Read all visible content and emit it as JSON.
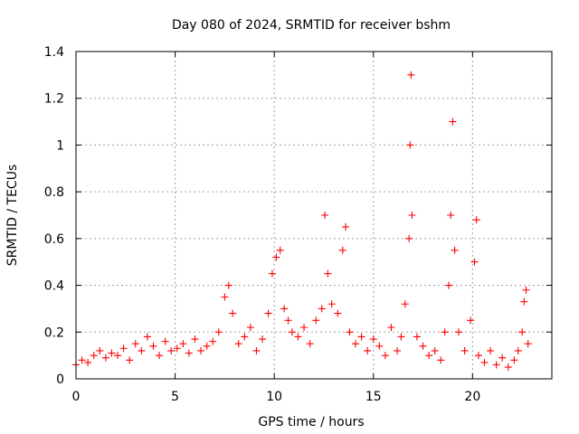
{
  "chart_data": {
    "type": "scatter",
    "title": "Day 080 of 2024, SRMTID for receiver bshm",
    "xlabel": "GPS time / hours",
    "ylabel": "SRMTID / TECUs",
    "xlim": [
      0,
      24
    ],
    "ylim": [
      0,
      1.4
    ],
    "x_ticks": [
      "0",
      "5",
      "10",
      "15",
      "20"
    ],
    "y_ticks": [
      "0",
      "0.2",
      "0.4",
      "0.6",
      "0.8",
      "1",
      "1.2",
      "1.4"
    ],
    "grid": true,
    "marker": "+",
    "color": "#ff0000",
    "series": [
      {
        "name": "bshm",
        "x": [
          0.0,
          0.3,
          0.6,
          0.9,
          1.2,
          1.5,
          1.8,
          2.1,
          2.4,
          2.7,
          3.0,
          3.3,
          3.6,
          3.9,
          4.2,
          4.5,
          4.8,
          5.1,
          5.4,
          5.7,
          6.0,
          6.3,
          6.6,
          6.9,
          7.2,
          7.5,
          7.7,
          7.9,
          8.2,
          8.5,
          8.8,
          9.1,
          9.4,
          9.7,
          9.9,
          10.1,
          10.3,
          10.5,
          10.7,
          10.9,
          11.2,
          11.5,
          11.8,
          12.1,
          12.4,
          12.55,
          12.7,
          12.9,
          13.2,
          13.45,
          13.6,
          13.8,
          14.1,
          14.4,
          14.7,
          15.0,
          15.3,
          15.6,
          15.9,
          16.2,
          16.4,
          16.6,
          16.8,
          16.85,
          16.9,
          16.95,
          17.2,
          17.5,
          17.8,
          18.1,
          18.4,
          18.6,
          18.8,
          18.9,
          19.0,
          19.1,
          19.3,
          19.6,
          19.9,
          20.1,
          20.2,
          20.3,
          20.6,
          20.9,
          21.2,
          21.5,
          21.8,
          22.1,
          22.3,
          22.5,
          22.6,
          22.7,
          22.8
        ],
        "y": [
          0.06,
          0.08,
          0.07,
          0.1,
          0.12,
          0.09,
          0.11,
          0.1,
          0.13,
          0.08,
          0.15,
          0.12,
          0.18,
          0.14,
          0.1,
          0.16,
          0.12,
          0.13,
          0.15,
          0.11,
          0.17,
          0.12,
          0.14,
          0.16,
          0.2,
          0.35,
          0.4,
          0.28,
          0.15,
          0.18,
          0.22,
          0.12,
          0.17,
          0.28,
          0.45,
          0.52,
          0.55,
          0.3,
          0.25,
          0.2,
          0.18,
          0.22,
          0.15,
          0.25,
          0.3,
          0.7,
          0.45,
          0.32,
          0.28,
          0.55,
          0.65,
          0.2,
          0.15,
          0.18,
          0.12,
          0.17,
          0.14,
          0.1,
          0.22,
          0.12,
          0.18,
          0.32,
          0.6,
          1.0,
          1.3,
          0.7,
          0.18,
          0.14,
          0.1,
          0.12,
          0.08,
          0.2,
          0.4,
          0.7,
          1.1,
          0.55,
          0.2,
          0.12,
          0.25,
          0.5,
          0.68,
          0.1,
          0.07,
          0.12,
          0.06,
          0.09,
          0.05,
          0.08,
          0.12,
          0.2,
          0.33,
          0.38,
          0.15
        ]
      }
    ]
  }
}
